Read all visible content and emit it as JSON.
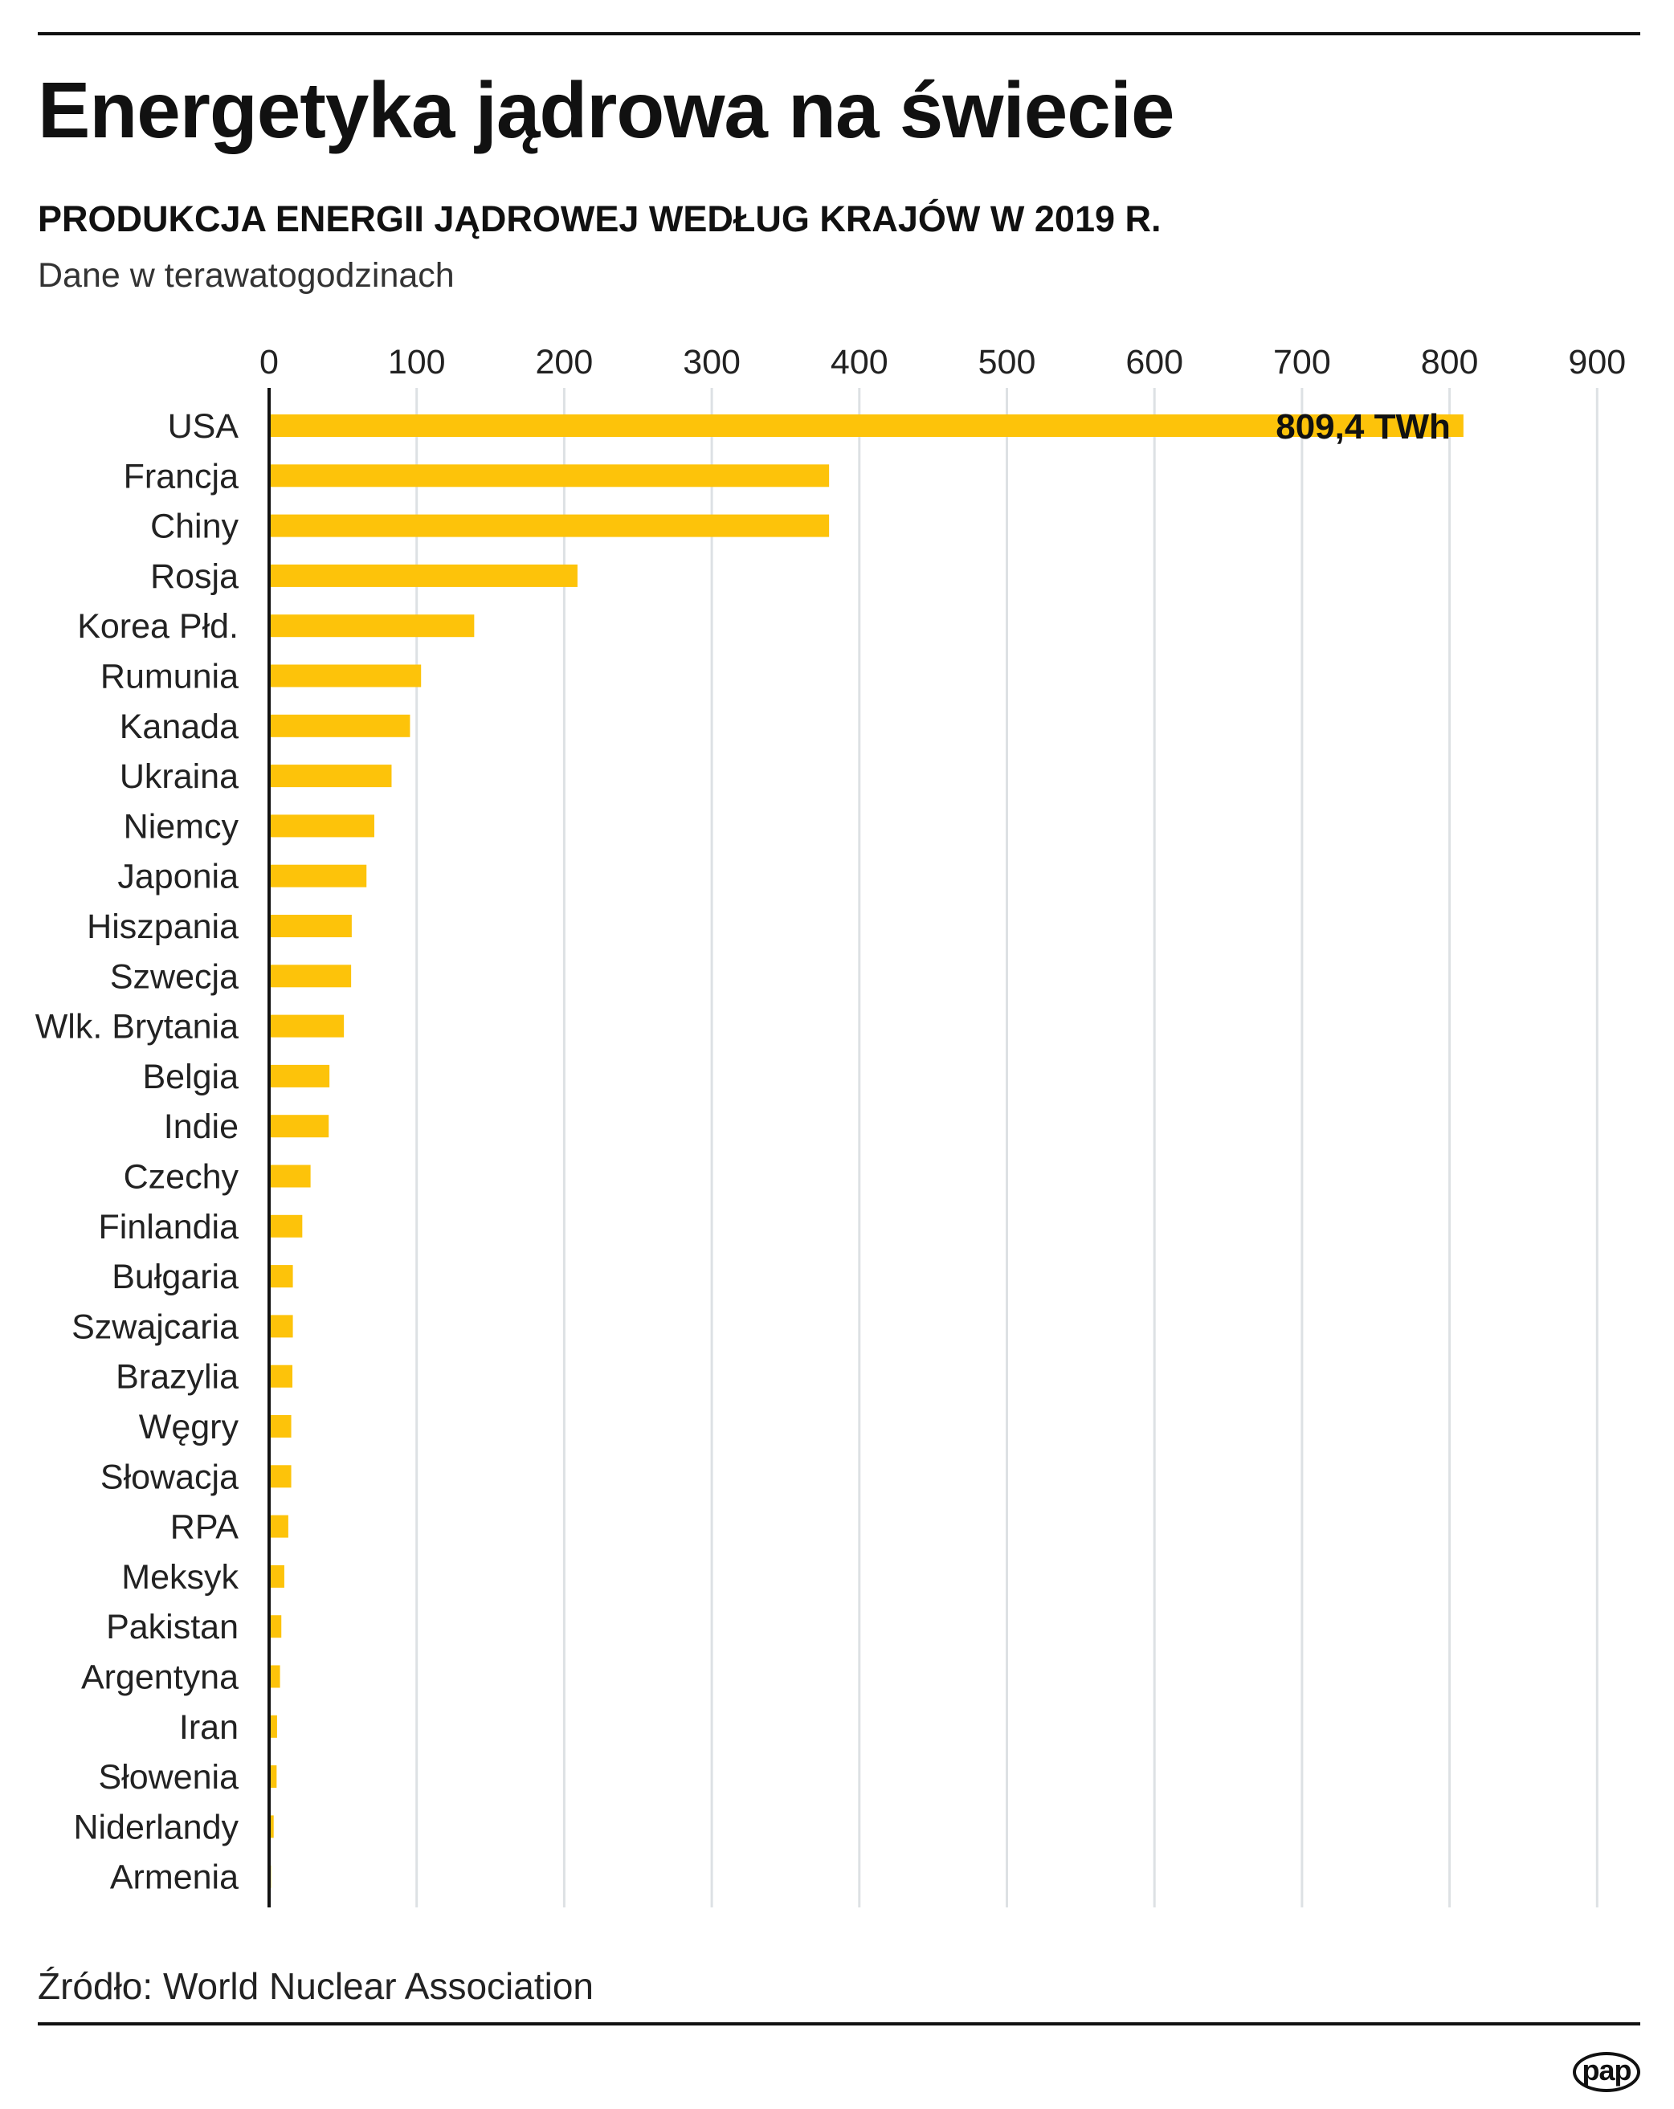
{
  "title": "Energetyka jądrowa na świecie",
  "subtitle": "PRODUKCJA ENERGII JĄDROWEJ WEDŁUG KRAJÓW W 2019 R.",
  "note": "Dane w terawatogodzinach",
  "source": "Źródło: World Nuclear Association",
  "logo": "pap",
  "colors": {
    "bar": "#FDC30A",
    "grid": "#DDE1E4",
    "axis": "#111111"
  },
  "chart_data": {
    "type": "bar",
    "orientation": "horizontal",
    "title": "PRODUKCJA ENERGII JĄDROWEJ WEDŁUG KRAJÓW W 2019 R.",
    "xlabel": "Dane w terawatogodzinach",
    "xlim": [
      0,
      900
    ],
    "ticks": [
      "0",
      "100",
      "200",
      "300",
      "400",
      "500",
      "600",
      "700",
      "800",
      "900"
    ],
    "grid": true,
    "categories": [
      "USA",
      "Francja",
      "Chiny",
      "Rosja",
      "Korea Płd.",
      "Rumunia",
      "Kanada",
      "Ukraina",
      "Niemcy",
      "Japonia",
      "Hiszpania",
      "Szwecja",
      "Wlk. Brytania",
      "Belgia",
      "Indie",
      "Czechy",
      "Finlandia",
      "Bułgaria",
      "Szwajcaria",
      "Brazylia",
      "Węgry",
      "Słowacja",
      "RPA",
      "Meksyk",
      "Pakistan",
      "Argentyna",
      "Iran",
      "Słowenia",
      "Niderlandy",
      "Armenia"
    ],
    "values": [
      809.4,
      379.5,
      379.5,
      209,
      139,
      103,
      95.5,
      83,
      71.3,
      66,
      56,
      55.6,
      50.7,
      40.9,
      40.4,
      28.1,
      22.5,
      16.1,
      16.1,
      15.8,
      15,
      15,
      13,
      10.3,
      8.3,
      7.4,
      5.4,
      5.1,
      3.1,
      1.3
    ],
    "annotations": [
      {
        "category": "USA",
        "text": "809,4 TWh"
      }
    ]
  }
}
